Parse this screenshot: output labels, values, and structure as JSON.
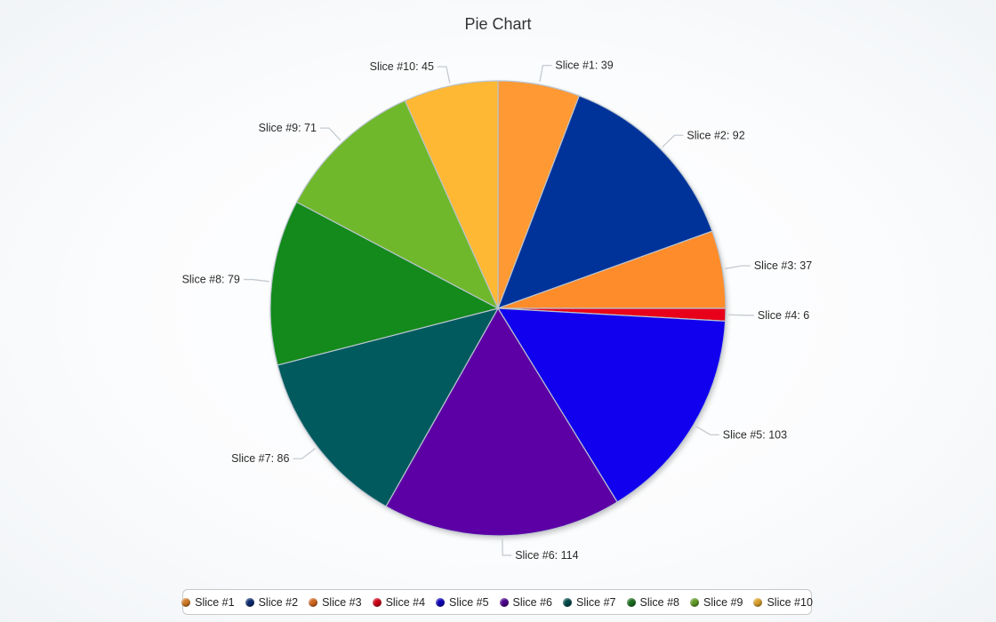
{
  "chart_data": {
    "type": "pie",
    "title": "Pie Chart",
    "slices": [
      {
        "label": "Slice #1",
        "value": 39,
        "display": "Slice #1: 39",
        "color": "#FF9933"
      },
      {
        "label": "Slice #2",
        "value": 92,
        "display": "Slice #2: 92",
        "color": "#00339A"
      },
      {
        "label": "Slice #3",
        "value": 37,
        "display": "Slice #3: 37",
        "color": "#FF8C2A"
      },
      {
        "label": "Slice #4",
        "value": 6,
        "display": "Slice #4: 6",
        "color": "#E8001A"
      },
      {
        "label": "Slice #5",
        "value": 103,
        "display": "Slice #5: 103",
        "color": "#1100EE"
      },
      {
        "label": "Slice #6",
        "value": 114,
        "display": "Slice #6: 114",
        "color": "#5C00A6"
      },
      {
        "label": "Slice #7",
        "value": 86,
        "display": "Slice #7: 86",
        "color": "#005A5E"
      },
      {
        "label": "Slice #8",
        "value": 79,
        "display": "Slice #8: 79",
        "color": "#138A1B"
      },
      {
        "label": "Slice #9",
        "value": 71,
        "display": "Slice #9: 71",
        "color": "#70B82B"
      },
      {
        "label": "Slice #10",
        "value": 45,
        "display": "Slice #10: 45",
        "color": "#FFB833"
      }
    ],
    "legend": {
      "position": "bottom-center",
      "dot_colors": [
        "#D07A25",
        "#0B2B6E",
        "#D0661F",
        "#CC0015",
        "#0D00B5",
        "#4A0088",
        "#004848",
        "#1A6E1E",
        "#5F9A26",
        "#D9A02A"
      ]
    }
  }
}
